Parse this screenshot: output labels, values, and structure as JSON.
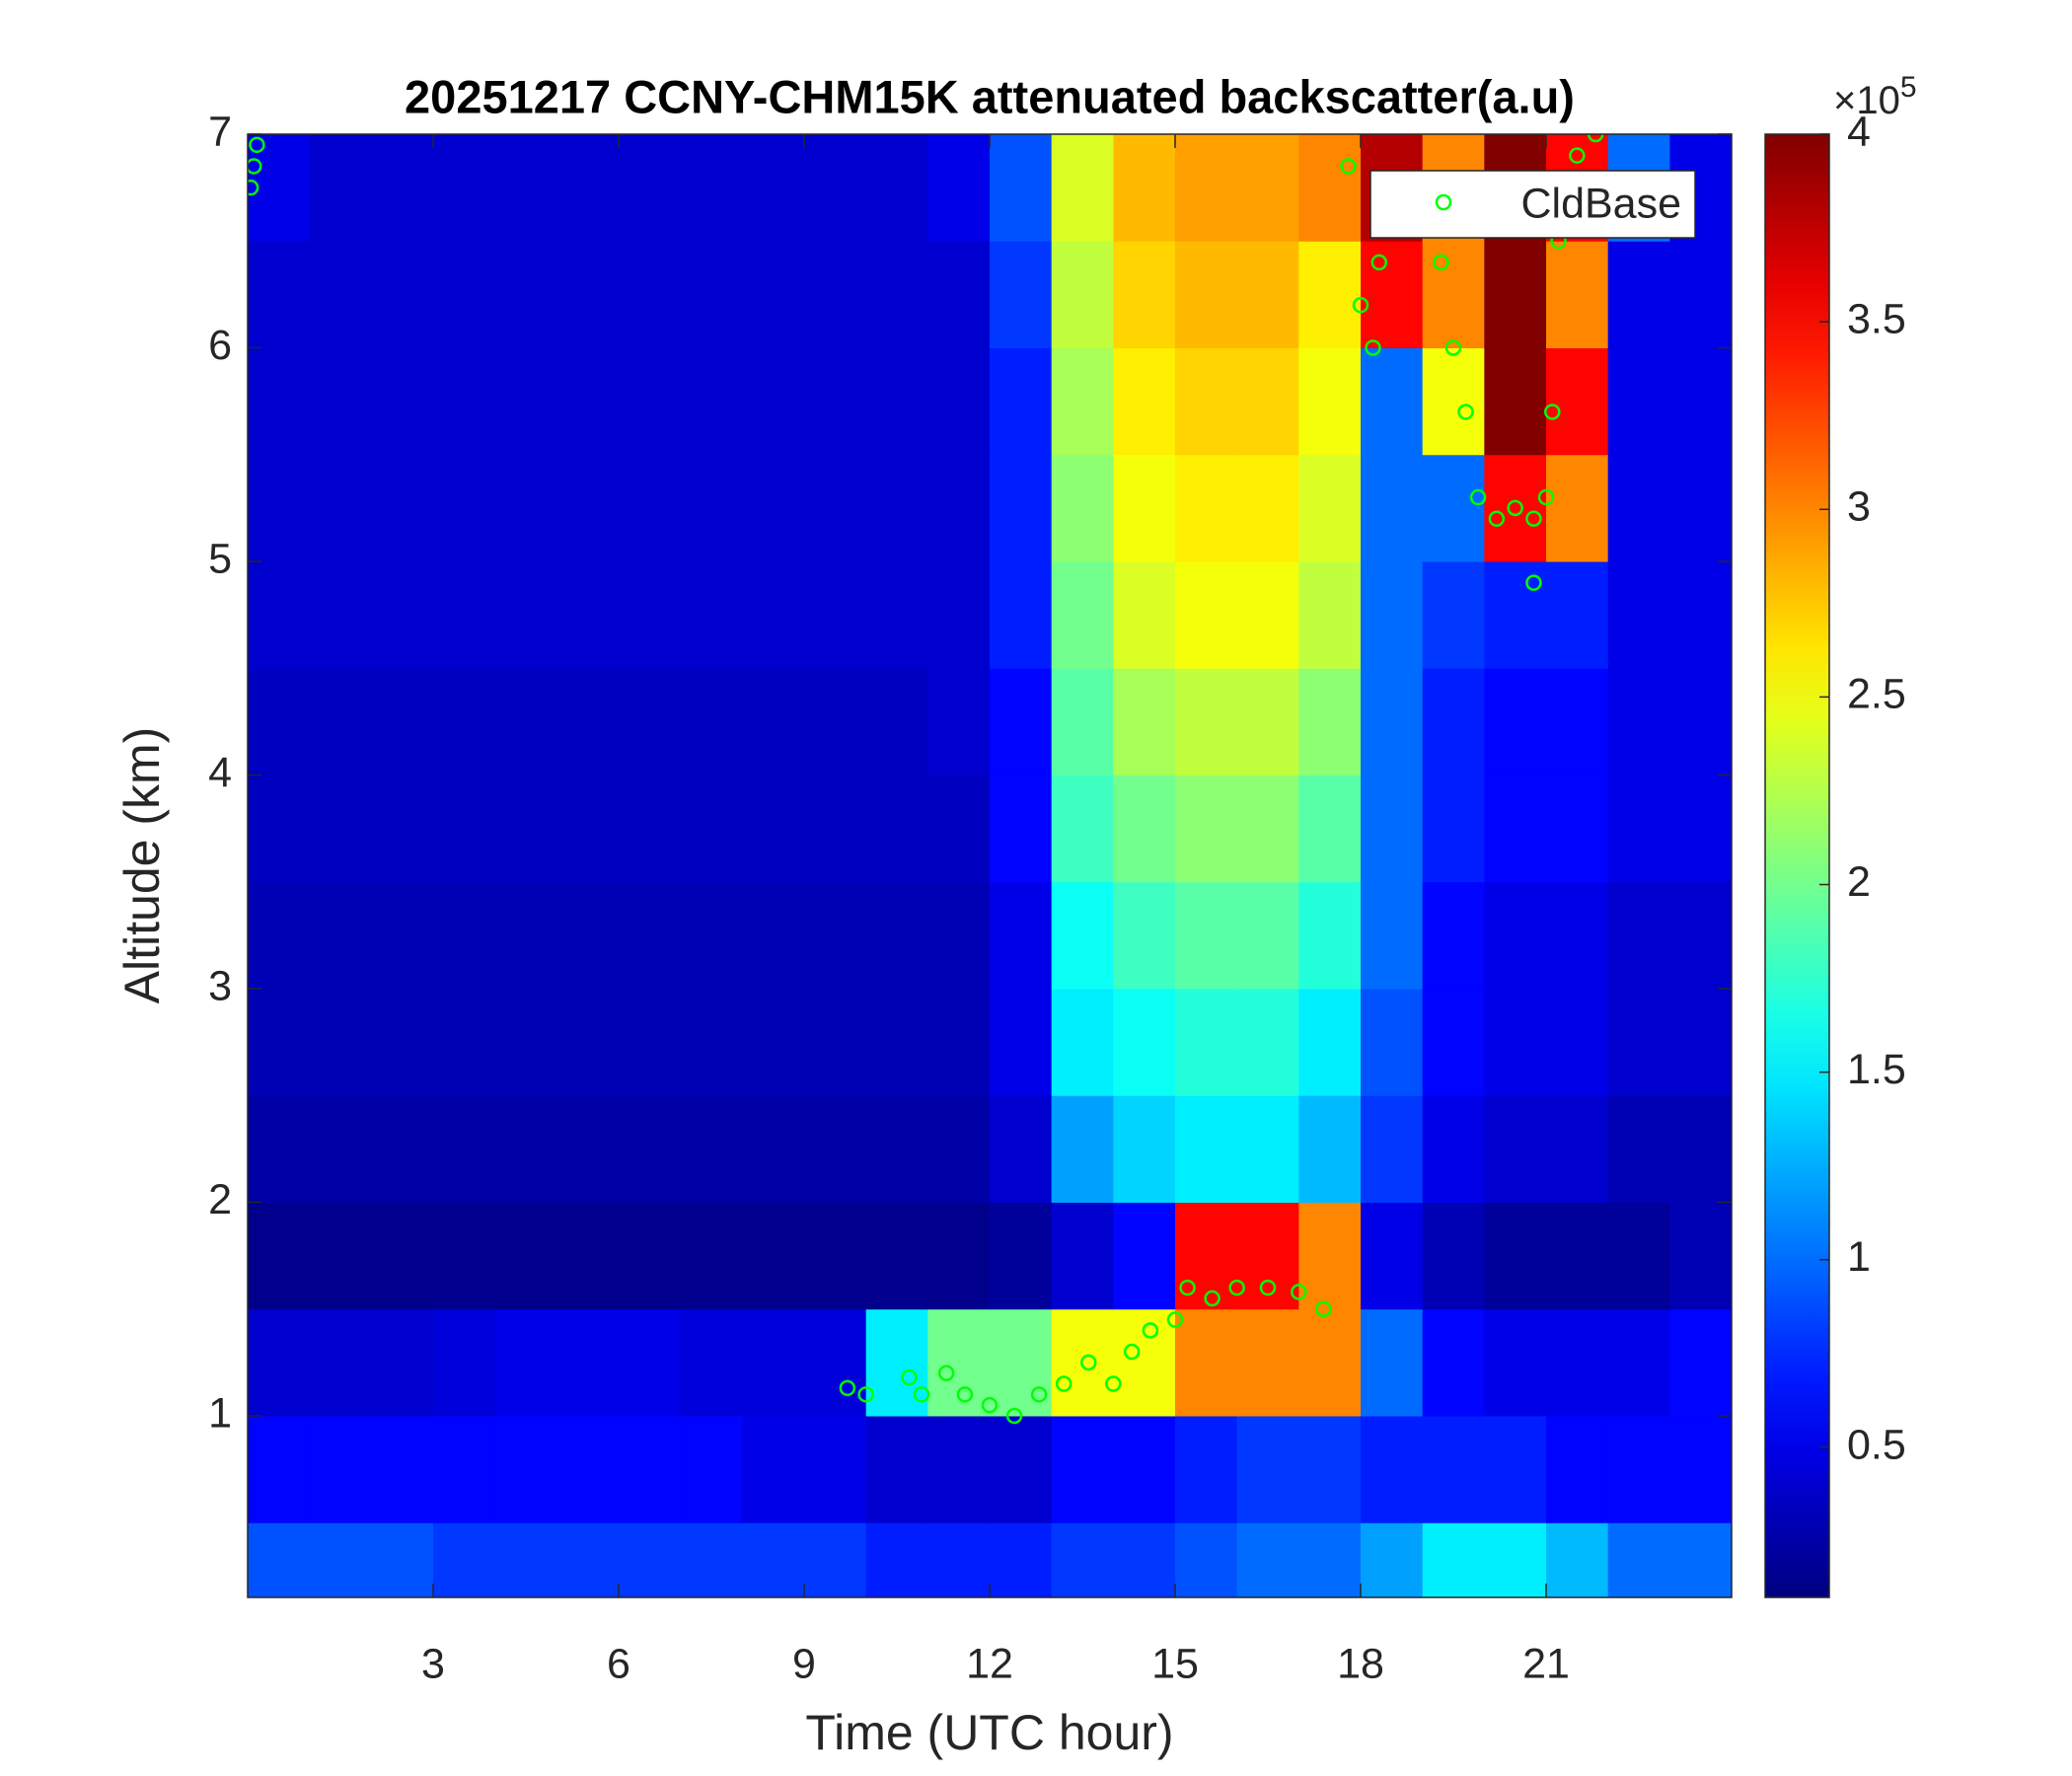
{
  "chart_data": {
    "type": "heatmap",
    "title": "20251217 CCNY-CHM15K attenuated backscatter(a.u)",
    "x_label": "Time (UTC hour)",
    "y_label": "Altitude (km)",
    "xlim": [
      0,
      24
    ],
    "ylim": [
      0.15,
      7
    ],
    "xticks": [
      3,
      6,
      9,
      12,
      15,
      18,
      21
    ],
    "yticks": [
      1,
      2,
      3,
      4,
      5,
      6,
      7
    ],
    "x_edges": [
      0,
      1,
      2,
      3,
      4,
      5,
      6,
      7,
      8,
      9,
      10,
      11,
      12,
      13,
      14,
      15,
      16,
      17,
      18,
      19,
      20,
      21,
      22,
      23,
      24
    ],
    "y_edges": [
      0.15,
      0.5,
      1,
      1.5,
      2,
      2.5,
      3,
      3.5,
      4,
      4.5,
      5,
      5.5,
      6,
      6.5,
      7
    ],
    "colormap": "jet",
    "clim": [
      0.1,
      4
    ],
    "colorbar_ticks": [
      0.5,
      1,
      1.5,
      2,
      2.5,
      3,
      3.5,
      4
    ],
    "colorbar_scale_label": "×10",
    "colorbar_scale_exponent": "5",
    "z": [
      [
        0.9,
        0.9,
        0.9,
        0.8,
        0.8,
        0.8,
        0.8,
        0.8,
        0.8,
        0.8,
        0.7,
        0.7,
        0.7,
        0.8,
        0.8,
        0.9,
        1.0,
        1.0,
        1.2,
        1.5,
        1.5,
        1.3,
        1.0,
        1.0
      ],
      [
        0.6,
        0.6,
        0.6,
        0.6,
        0.6,
        0.6,
        0.6,
        0.6,
        0.5,
        0.5,
        0.4,
        0.4,
        0.4,
        0.6,
        0.6,
        0.7,
        0.8,
        0.8,
        0.7,
        0.7,
        0.7,
        0.6,
        0.6,
        0.6
      ],
      [
        0.4,
        0.4,
        0.4,
        0.45,
        0.5,
        0.5,
        0.5,
        0.45,
        0.45,
        0.45,
        1.5,
        2.0,
        2.0,
        2.5,
        2.5,
        3.0,
        3.0,
        3.0,
        1.0,
        0.6,
        0.5,
        0.5,
        0.5,
        0.6
      ],
      [
        0.15,
        0.15,
        0.15,
        0.15,
        0.15,
        0.15,
        0.15,
        0.15,
        0.15,
        0.15,
        0.15,
        0.15,
        0.2,
        0.4,
        0.6,
        3.5,
        3.5,
        3.0,
        0.5,
        0.3,
        0.2,
        0.2,
        0.2,
        0.3
      ],
      [
        0.25,
        0.25,
        0.25,
        0.25,
        0.25,
        0.25,
        0.25,
        0.25,
        0.25,
        0.25,
        0.25,
        0.25,
        0.4,
        1.2,
        1.4,
        1.5,
        1.5,
        1.3,
        0.8,
        0.5,
        0.4,
        0.4,
        0.3,
        0.3
      ],
      [
        0.3,
        0.3,
        0.3,
        0.3,
        0.3,
        0.3,
        0.3,
        0.3,
        0.3,
        0.3,
        0.3,
        0.3,
        0.5,
        1.5,
        1.6,
        1.7,
        1.7,
        1.5,
        0.9,
        0.6,
        0.5,
        0.5,
        0.4,
        0.4
      ],
      [
        0.3,
        0.3,
        0.3,
        0.3,
        0.3,
        0.3,
        0.3,
        0.3,
        0.3,
        0.3,
        0.3,
        0.3,
        0.5,
        1.6,
        1.8,
        1.9,
        1.9,
        1.7,
        1.0,
        0.6,
        0.5,
        0.5,
        0.4,
        0.4
      ],
      [
        0.35,
        0.35,
        0.35,
        0.35,
        0.35,
        0.35,
        0.35,
        0.35,
        0.35,
        0.35,
        0.35,
        0.35,
        0.6,
        1.8,
        2.0,
        2.1,
        2.1,
        1.9,
        1.0,
        0.7,
        0.6,
        0.6,
        0.5,
        0.5
      ],
      [
        0.35,
        0.35,
        0.35,
        0.35,
        0.35,
        0.35,
        0.35,
        0.35,
        0.35,
        0.35,
        0.35,
        0.4,
        0.6,
        1.9,
        2.2,
        2.3,
        2.3,
        2.1,
        1.0,
        0.7,
        0.6,
        0.6,
        0.5,
        0.5
      ],
      [
        0.4,
        0.4,
        0.4,
        0.4,
        0.4,
        0.4,
        0.4,
        0.4,
        0.4,
        0.4,
        0.4,
        0.4,
        0.7,
        2.0,
        2.4,
        2.5,
        2.5,
        2.3,
        1.0,
        0.8,
        0.7,
        0.7,
        0.5,
        0.5
      ],
      [
        0.4,
        0.4,
        0.4,
        0.4,
        0.4,
        0.4,
        0.4,
        0.4,
        0.4,
        0.4,
        0.4,
        0.4,
        0.7,
        2.1,
        2.5,
        2.6,
        2.6,
        2.4,
        1.0,
        1.0,
        3.5,
        3.0,
        0.5,
        0.5
      ],
      [
        0.4,
        0.4,
        0.4,
        0.4,
        0.4,
        0.4,
        0.4,
        0.4,
        0.4,
        0.4,
        0.4,
        0.4,
        0.7,
        2.2,
        2.6,
        2.7,
        2.7,
        2.5,
        1.0,
        2.5,
        4.0,
        3.5,
        0.5,
        0.5
      ],
      [
        0.4,
        0.4,
        0.4,
        0.4,
        0.4,
        0.4,
        0.4,
        0.4,
        0.4,
        0.4,
        0.4,
        0.4,
        0.8,
        2.3,
        2.7,
        2.8,
        2.8,
        2.6,
        3.5,
        3.0,
        4.0,
        3.0,
        0.5,
        0.5
      ],
      [
        0.5,
        0.4,
        0.4,
        0.4,
        0.4,
        0.4,
        0.4,
        0.4,
        0.4,
        0.4,
        0.4,
        0.5,
        0.9,
        2.4,
        2.8,
        2.9,
        2.9,
        3.0,
        3.8,
        3.0,
        4.0,
        3.5,
        1.0,
        0.5
      ]
    ],
    "series": [
      {
        "name": "CldBase",
        "type": "scatter",
        "color": "#00ff00",
        "x": [
          0.05,
          0.1,
          0.15,
          9.7,
          10,
          10.7,
          10.9,
          11.3,
          11.6,
          12,
          12.4,
          12.8,
          13.2,
          13.6,
          14,
          14.3,
          14.6,
          15,
          15.2,
          15.6,
          16,
          16.5,
          17,
          17.4,
          17.8,
          18,
          18.2,
          18.3,
          19.3,
          19.5,
          19.7,
          19.9,
          20.2,
          20.5,
          20.8,
          21,
          21.1,
          20.8,
          21.2,
          21.5,
          21.8
        ],
        "y": [
          6.75,
          6.85,
          6.95,
          1.13,
          1.1,
          1.18,
          1.1,
          1.2,
          1.1,
          1.05,
          1.0,
          1.1,
          1.15,
          1.25,
          1.15,
          1.3,
          1.4,
          1.45,
          1.6,
          1.55,
          1.6,
          1.6,
          1.58,
          1.5,
          6.85,
          6.2,
          6.0,
          6.4,
          6.4,
          6.0,
          5.7,
          5.3,
          5.2,
          5.25,
          5.2,
          5.3,
          5.7,
          4.9,
          6.5,
          6.9,
          7.0
        ]
      }
    ],
    "legend": "upper right"
  }
}
